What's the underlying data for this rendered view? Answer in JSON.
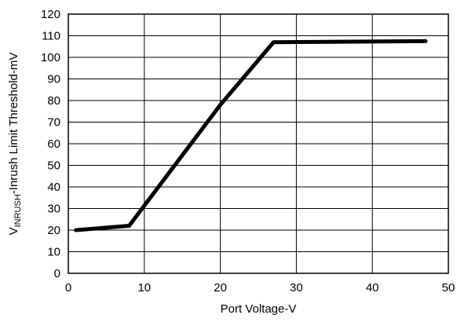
{
  "chart_data": {
    "type": "line",
    "title": "",
    "xlabel": "Port Voltage-V",
    "ylabel": {
      "main": "V",
      "subscript": "INRUSH",
      "suffix": "-Inrush Limit Threshold-mV"
    },
    "xlim": [
      0,
      50
    ],
    "ylim": [
      0,
      120
    ],
    "x_ticks": [
      0,
      10,
      20,
      30,
      40,
      50
    ],
    "y_ticks": [
      0,
      10,
      20,
      30,
      40,
      50,
      60,
      70,
      80,
      90,
      100,
      110,
      120
    ],
    "grid": true,
    "series": [
      {
        "x": [
          1,
          8,
          20,
          27,
          47
        ],
        "y": [
          20,
          22,
          78,
          107,
          107.5
        ],
        "color": "#000000"
      }
    ]
  }
}
